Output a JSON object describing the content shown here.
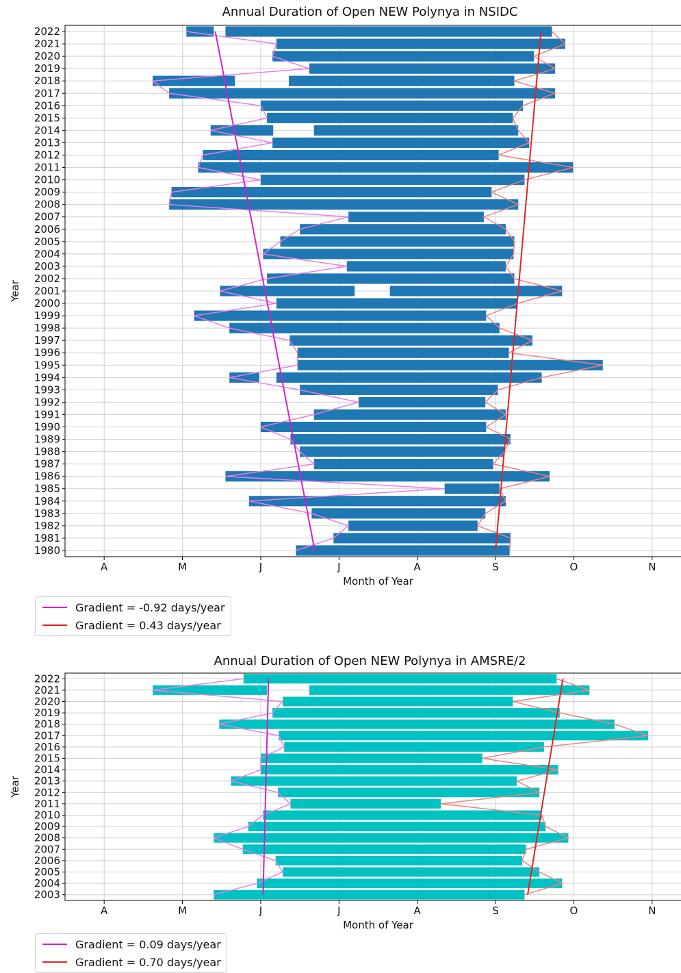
{
  "chart_data": [
    {
      "type": "bar",
      "title": "Annual Duration of Open NEW Polynya in NSIDC",
      "xlabel": "Month of Year",
      "ylabel": "Year",
      "x_ticks": [
        "A",
        "M",
        "J",
        "J",
        "A",
        "S",
        "O",
        "N"
      ],
      "x_range_month": [
        3.5,
        11.5
      ],
      "grid": true,
      "bar_color": "#1f77b4",
      "years": [
        1980,
        1981,
        1982,
        1983,
        1984,
        1985,
        1986,
        1987,
        1988,
        1989,
        1990,
        1991,
        1992,
        1993,
        1994,
        1995,
        1996,
        1997,
        1998,
        1999,
        2000,
        2001,
        2002,
        2003,
        2004,
        2005,
        2006,
        2007,
        2008,
        2009,
        2010,
        2011,
        2012,
        2013,
        2014,
        2015,
        2016,
        2017,
        2018,
        2019,
        2020,
        2021,
        2022
      ],
      "open_periods_month": [
        [
          [
            6.45,
            9.18
          ]
        ],
        [
          [
            6.93,
            9.19
          ]
        ],
        [
          [
            7.12,
            8.77
          ]
        ],
        [
          [
            6.65,
            8.87
          ]
        ],
        [
          [
            5.85,
            9.13
          ]
        ],
        [
          [
            8.35,
            9.05
          ]
        ],
        [
          [
            5.55,
            9.69
          ]
        ],
        [
          [
            6.68,
            8.97
          ]
        ],
        [
          [
            6.5,
            9.11
          ]
        ],
        [
          [
            6.38,
            9.19
          ]
        ],
        [
          [
            6.0,
            8.88
          ]
        ],
        [
          [
            6.68,
            9.13
          ]
        ],
        [
          [
            7.25,
            8.87
          ]
        ],
        [
          [
            6.5,
            9.03
          ]
        ],
        [
          [
            5.6,
            5.98
          ],
          [
            6.2,
            9.59
          ]
        ],
        [
          [
            6.47,
            10.37
          ]
        ],
        [
          [
            6.47,
            9.17
          ]
        ],
        [
          [
            6.37,
            9.47
          ]
        ],
        [
          [
            5.6,
            9.05
          ]
        ],
        [
          [
            5.15,
            8.88
          ]
        ],
        [
          [
            6.2,
            9.28
          ]
        ],
        [
          [
            5.48,
            7.2
          ],
          [
            7.65,
            9.85
          ]
        ],
        [
          [
            6.08,
            9.24
          ]
        ],
        [
          [
            7.1,
            9.13
          ]
        ],
        [
          [
            6.03,
            9.23
          ]
        ],
        [
          [
            6.25,
            9.24
          ]
        ],
        [
          [
            6.5,
            9.13
          ]
        ],
        [
          [
            7.12,
            8.85
          ]
        ],
        [
          [
            4.83,
            9.29
          ]
        ],
        [
          [
            4.86,
            8.95
          ]
        ],
        [
          [
            6.0,
            9.37
          ]
        ],
        [
          [
            5.2,
            9.99
          ]
        ],
        [
          [
            5.26,
            9.04
          ]
        ],
        [
          [
            6.15,
            9.43
          ]
        ],
        [
          [
            5.36,
            6.16
          ],
          [
            6.68,
            9.29
          ]
        ],
        [
          [
            6.08,
            9.22
          ]
        ],
        [
          [
            6.0,
            9.35
          ]
        ],
        [
          [
            4.83,
            9.76
          ]
        ],
        [
          [
            4.62,
            5.67
          ],
          [
            6.36,
            9.24
          ]
        ],
        [
          [
            6.62,
            9.76
          ]
        ],
        [
          [
            6.15,
            9.49
          ]
        ],
        [
          [
            6.2,
            9.89
          ]
        ],
        [
          [
            5.05,
            5.4
          ],
          [
            5.55,
            9.72
          ]
        ]
      ],
      "trend_start": {
        "name": "Gradient = -0.92 days/year",
        "slope_days_per_year": -0.92,
        "month_1980": 6.69,
        "month_2022": 5.42,
        "color": "#cc22cc"
      },
      "trend_end": {
        "name": "Gradient = 0.43 days/year",
        "slope_days_per_year": 0.43,
        "month_1980": 9.0,
        "month_2022": 9.58,
        "color": "#e62222"
      }
    },
    {
      "type": "bar",
      "title": "Annual Duration of Open NEW Polynya in AMSRE/2",
      "xlabel": "Month of Year",
      "ylabel": "Year",
      "x_ticks": [
        "A",
        "M",
        "J",
        "J",
        "A",
        "S",
        "O",
        "N"
      ],
      "x_range_month": [
        3.5,
        11.5
      ],
      "grid": true,
      "bar_color": "#00c2c2",
      "years": [
        2003,
        2004,
        2005,
        2006,
        2007,
        2008,
        2009,
        2010,
        2011,
        2012,
        2013,
        2014,
        2015,
        2016,
        2017,
        2018,
        2019,
        2020,
        2021,
        2022
      ],
      "open_periods_month": [
        [
          [
            5.4,
            9.37
          ]
        ],
        [
          [
            5.95,
            9.85
          ]
        ],
        [
          [
            6.28,
            9.56
          ]
        ],
        [
          [
            6.19,
            9.34
          ]
        ],
        [
          [
            5.77,
            9.39
          ]
        ],
        [
          [
            5.4,
            9.93
          ]
        ],
        [
          [
            5.84,
            9.64
          ]
        ],
        [
          [
            6.03,
            9.59
          ]
        ],
        [
          [
            6.38,
            8.3
          ]
        ],
        [
          [
            6.22,
            9.56
          ]
        ],
        [
          [
            5.62,
            9.27
          ]
        ],
        [
          [
            6.0,
            9.8
          ]
        ],
        [
          [
            6.0,
            8.83
          ]
        ],
        [
          [
            6.3,
            9.62
          ]
        ],
        [
          [
            6.23,
            10.95
          ]
        ],
        [
          [
            5.47,
            10.52
          ]
        ],
        [
          [
            6.15,
            9.82
          ]
        ],
        [
          [
            6.28,
            9.22
          ]
        ],
        [
          [
            4.62,
            6.08
          ],
          [
            6.62,
            10.2
          ]
        ],
        [
          [
            5.78,
            9.78
          ]
        ]
      ],
      "trend_start": {
        "name": "Gradient = 0.09 days/year",
        "slope_days_per_year": 0.09,
        "month_2003": 6.03,
        "month_2022": 6.1,
        "color": "#cc22cc"
      },
      "trend_end": {
        "name": "Gradient = 0.70 days/year",
        "slope_days_per_year": 0.7,
        "month_2003": 9.41,
        "month_2022": 9.86,
        "color": "#e62222"
      }
    }
  ]
}
